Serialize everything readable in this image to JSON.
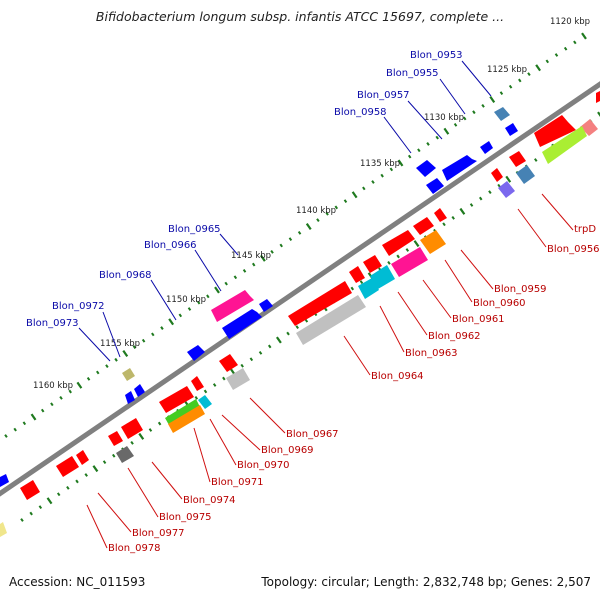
{
  "title": "Bifidobacterium longum subsp. infantis ATCC 15697, complete ...",
  "accession": "Accession: NC_011593",
  "topology": "Topology: circular; Length: 2,832,748 bp; Genes: 2,507",
  "kbp_ticks": [
    "1120 kbp",
    "1125 kbp",
    "1130 kbp",
    "1135 kbp",
    "1140 kbp",
    "1145 kbp",
    "1150 kbp",
    "1155 kbp",
    "1160 kbp"
  ],
  "upper_labels": [
    "Blon_0953",
    "Blon_0955",
    "Blon_0957",
    "Blon_0958",
    "Blon_0965",
    "Blon_0966",
    "Blon_0968",
    "Blon_0972",
    "Blon_0973"
  ],
  "lower_labels": [
    "trpD",
    "Blon_0956",
    "Blon_0959",
    "Blon_0960",
    "Blon_0961",
    "Blon_0962",
    "Blon_0963",
    "Blon_0964",
    "Blon_0967",
    "Blon_0969",
    "Blon_0970",
    "Blon_0971",
    "Blon_0974",
    "Blon_0975",
    "Blon_0977",
    "Blon_0978"
  ],
  "colors": {
    "backbone": "#808080",
    "tick_dot": "#1f7a1f",
    "forward_label": "#0a0aa8",
    "reverse_label": "#b80000",
    "gene_red": "#ff0000",
    "gene_blue": "#0000ff",
    "gene_magenta": "#ff1493",
    "gene_gray": "#c0c0c0",
    "gene_cyan": "#00bcd4",
    "gene_orange": "#ff8c00",
    "gene_green": "#44cc22",
    "gene_lime": "#aaee33",
    "gene_steel": "#4682b4",
    "gene_olive": "#bdb76b",
    "gene_purple": "#7b68ee"
  }
}
